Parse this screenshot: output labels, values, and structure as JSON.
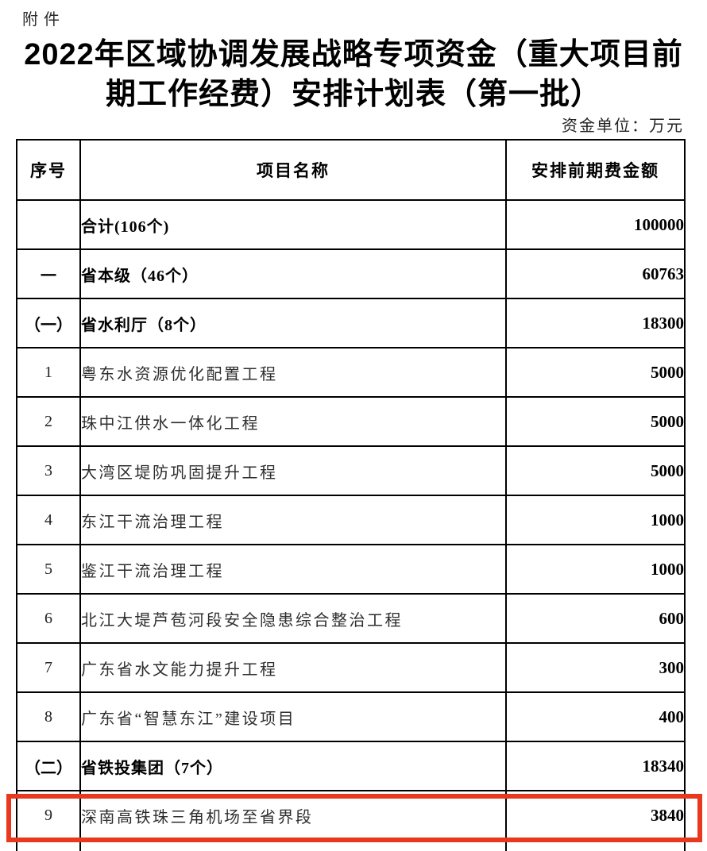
{
  "page": {
    "attachment_label": "附件",
    "title_line1": "2022年区域协调发展战略专项资金（重大项目前",
    "title_line2": "期工作经费）安排计划表（第一批）",
    "unit_note": "资金单位：万元"
  },
  "table": {
    "columns": [
      "序号",
      "项目名称",
      "安排前期费金额"
    ],
    "rows": [
      {
        "seq": "",
        "name": "合计(106个)",
        "amount": "100000",
        "bold": true,
        "highlighted": false
      },
      {
        "seq": "一",
        "name": "省本级（46个）",
        "amount": "60763",
        "bold": true,
        "highlighted": false
      },
      {
        "seq": "（一）",
        "name": "省水利厅（8个）",
        "amount": "18300",
        "bold": true,
        "highlighted": false
      },
      {
        "seq": "1",
        "name": "粤东水资源优化配置工程",
        "amount": "5000",
        "bold": false,
        "highlighted": false
      },
      {
        "seq": "2",
        "name": "珠中江供水一体化工程",
        "amount": "5000",
        "bold": false,
        "highlighted": false
      },
      {
        "seq": "3",
        "name": "大湾区堤防巩固提升工程",
        "amount": "5000",
        "bold": false,
        "highlighted": false
      },
      {
        "seq": "4",
        "name": "东江干流治理工程",
        "amount": "1000",
        "bold": false,
        "highlighted": false
      },
      {
        "seq": "5",
        "name": "鉴江干流治理工程",
        "amount": "1000",
        "bold": false,
        "highlighted": false
      },
      {
        "seq": "6",
        "name": "北江大堤芦苞河段安全隐患综合整治工程",
        "amount": "600",
        "bold": false,
        "highlighted": false
      },
      {
        "seq": "7",
        "name": "广东省水文能力提升工程",
        "amount": "300",
        "bold": false,
        "highlighted": false
      },
      {
        "seq": "8",
        "name": "广东省“智慧东江”建设项目",
        "amount": "400",
        "bold": false,
        "highlighted": false
      },
      {
        "seq": "（二）",
        "name": "省铁投集团（7个）",
        "amount": "18340",
        "bold": true,
        "highlighted": false
      },
      {
        "seq": "9",
        "name": "深南高铁珠三角机场至省界段",
        "amount": "3840",
        "bold": false,
        "highlighted": true
      }
    ],
    "highlight_color": "#e8391f"
  }
}
